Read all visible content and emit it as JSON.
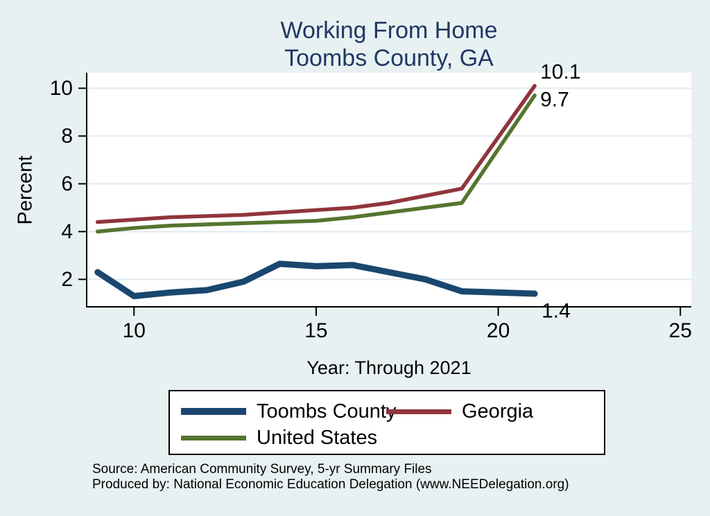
{
  "header": {
    "title": "Working From Home",
    "subtitle": "Toombs County, GA"
  },
  "chart_data": {
    "type": "line",
    "x": [
      9,
      10,
      11,
      12,
      13,
      14,
      15,
      16,
      17,
      18,
      19,
      20,
      21
    ],
    "series": [
      {
        "name": "Toombs County",
        "color": "#1a476f",
        "line_width": 9,
        "values": [
          2.3,
          1.3,
          1.45,
          1.55,
          1.9,
          2.65,
          2.55,
          2.6,
          2.3,
          2.0,
          1.5,
          1.45,
          1.4
        ],
        "end_label": "1.4"
      },
      {
        "name": "Georgia",
        "color": "#90353b",
        "line_width": 5.5,
        "values": [
          4.4,
          4.5,
          4.6,
          4.65,
          4.7,
          4.8,
          4.9,
          5.0,
          5.2,
          5.5,
          5.8,
          7.95,
          10.1
        ],
        "end_label": "10.1"
      },
      {
        "name": "United States",
        "color": "#55752f",
        "line_width": 5.5,
        "values": [
          4.0,
          4.15,
          4.25,
          4.3,
          4.35,
          4.4,
          4.45,
          4.6,
          4.8,
          5.0,
          5.2,
          7.45,
          9.7
        ],
        "end_label": "9.7"
      }
    ],
    "title": "Working From Home",
    "subtitle": "Toombs County, GA",
    "xlabel": "Year: Through 2021",
    "ylabel": "Percent",
    "x_ticks": [
      10,
      15,
      20,
      25
    ],
    "y_ticks": [
      2,
      4,
      6,
      8,
      10
    ],
    "xlim": [
      8.7,
      25.3
    ],
    "ylim": [
      0.85,
      10.65
    ],
    "grid": true,
    "legend_position": "bottom"
  },
  "footer": {
    "source": "Source: American Community Survey, 5-yr Summary Files",
    "produced_by": "Produced by: National Economic Education Delegation (www.NEEDelegation.org)"
  },
  "colors": {
    "background": "#e8f1f2",
    "plot_background": "#ffffff",
    "gridline": "#e0eaee",
    "axis": "#000000",
    "title_text": "#1f3864"
  }
}
